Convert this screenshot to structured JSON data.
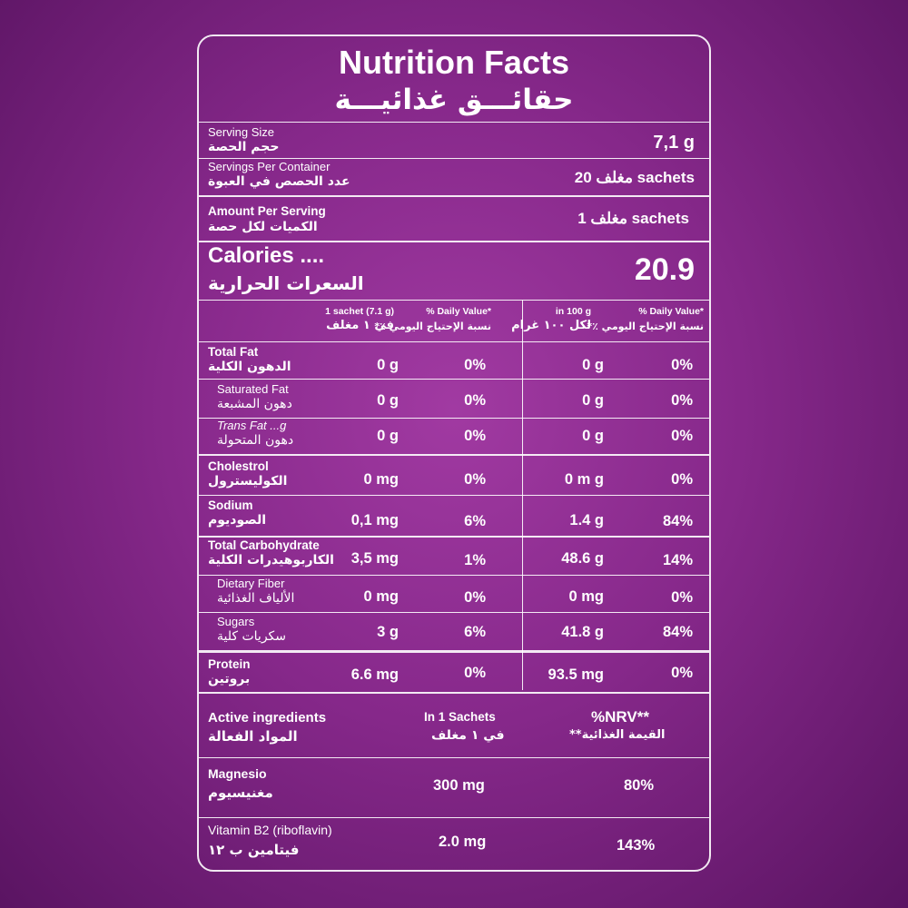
{
  "title": "Nutrition Facts",
  "title_ar": "حقائـــق غذائيـــة",
  "serving_size": {
    "label": "Serving Size",
    "label_ar": "حجم الحصة",
    "value": "7,1 g"
  },
  "servings_per_container": {
    "label": "Servings Per Container",
    "label_ar": "عدد الحصص في العبوة",
    "value": "مغلف 20 sachets"
  },
  "amount_per_serving": {
    "label": "Amount Per Serving",
    "label_ar": "الكميات لكل حصة",
    "value": "مغلف 1 sachets"
  },
  "calories": {
    "label": "Calories ....",
    "label_ar": "السعرات الحرارية",
    "value": "20.9"
  },
  "column_headers": {
    "col1": "1 sachet (7.1 g)",
    "col1_ar": "في ١ مغلف",
    "col2": "% Daily Value*",
    "col2_ar": "نسبة الإحتياج اليومي ٪*",
    "col3": "in 100 g",
    "col3_ar": "لكل ١٠٠ غرام",
    "col4": "% Daily Value*",
    "col4_ar": "نسبة الإحتياج اليومي ٪*"
  },
  "nutrients": [
    {
      "name": "Total Fat",
      "name_ar": "الدهون الكلية",
      "per_sachet": "0 g",
      "dv1": "0%",
      "per_100g": "0 g",
      "dv2": "0%"
    },
    {
      "name": "Saturated Fat",
      "name_ar": "دهون المشبعة",
      "per_sachet": "0 g",
      "dv1": "0%",
      "per_100g": "0 g",
      "dv2": "0%"
    },
    {
      "name": "Trans Fat ...g",
      "name_ar": "دهون المتحولة",
      "per_sachet": "0 g",
      "dv1": "0%",
      "per_100g": "0 g",
      "dv2": "0%"
    },
    {
      "name": "Cholestrol",
      "name_ar": "الكوليسترول",
      "per_sachet": "0 mg",
      "dv1": "0%",
      "per_100g": "0 m g",
      "dv2": "0%"
    },
    {
      "name": "Sodium",
      "name_ar": "الصوديوم",
      "per_sachet": "0,1 mg",
      "dv1": "6%",
      "per_100g": "1.4 g",
      "dv2": "84%"
    },
    {
      "name": "Total Carbohydrate",
      "name_ar": "الكاربوهيدرات الكلية",
      "per_sachet": "3,5 mg",
      "dv1": "1%",
      "per_100g": "48.6 g",
      "dv2": "14%"
    },
    {
      "name": "Dietary Fiber",
      "name_ar": "الألياف الغذائية",
      "per_sachet": "0 mg",
      "dv1": "0%",
      "per_100g": "0 mg",
      "dv2": "0%"
    },
    {
      "name": "Sugars",
      "name_ar": "سكريات كلية",
      "per_sachet": "3 g",
      "dv1": "6%",
      "per_100g": "41.8 g",
      "dv2": "84%"
    },
    {
      "name": "Protein",
      "name_ar": "بروتين",
      "per_sachet": "6.6 mg",
      "dv1": "0%",
      "per_100g": "93.5 mg",
      "dv2": "0%"
    }
  ],
  "active": {
    "header": "Active ingredients",
    "header_ar": "المواد الفعالة",
    "col1": "In 1 Sachets",
    "col1_ar": "في ١ مغلف",
    "col2": "%NRV**",
    "col2_ar": "القيمة الغذائية**",
    "items": [
      {
        "name": "Magnesio",
        "name_ar": "مغنيسيوم",
        "amount": "300 mg",
        "nrv": "80%"
      },
      {
        "name": "Vitamin B2 (riboflavin)",
        "name_ar": "فيتامين ب ١٢",
        "amount": "2.0 mg",
        "nrv": "143%"
      }
    ]
  }
}
